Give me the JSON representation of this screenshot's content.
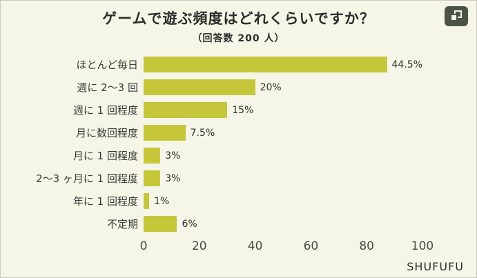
{
  "header": {
    "title": "ゲームで遊ぶ頻度はどれくらいですか？",
    "subtitle": "（回答数 200 人）"
  },
  "chart_data": {
    "type": "bar",
    "orientation": "horizontal",
    "title": "ゲームで遊ぶ頻度はどれくらいですか？",
    "subtitle": "（回答数 200 人）",
    "respondents": 200,
    "categories": [
      "ほとんど毎日",
      "週に 2〜3 回",
      "週に 1 回程度",
      "月に数回程度",
      "月に 1 回程度",
      "2〜3 ヶ月に 1 回程度",
      "年に 1 回程度",
      "不定期"
    ],
    "values_percent": [
      44.5,
      20,
      15,
      7.5,
      3,
      3,
      1,
      6
    ],
    "value_labels": [
      "44.5%",
      "20%",
      "15%",
      "7.5%",
      "3%",
      "3%",
      "1%",
      "6%"
    ],
    "values_people": [
      89,
      40,
      30,
      15,
      6,
      6,
      2,
      12
    ],
    "x_ticks": [
      "0",
      "20",
      "40",
      "60",
      "80",
      "100"
    ],
    "xlim": [
      0,
      100
    ],
    "xlabel": "",
    "ylabel": "",
    "grid": false,
    "legend": false,
    "bar_color": "#c5c63a",
    "background_color": "#f6f6e8"
  },
  "icons": {
    "top_right": "overlapping-windows-icon"
  },
  "footer": {
    "brand": "SHUFUFU"
  }
}
